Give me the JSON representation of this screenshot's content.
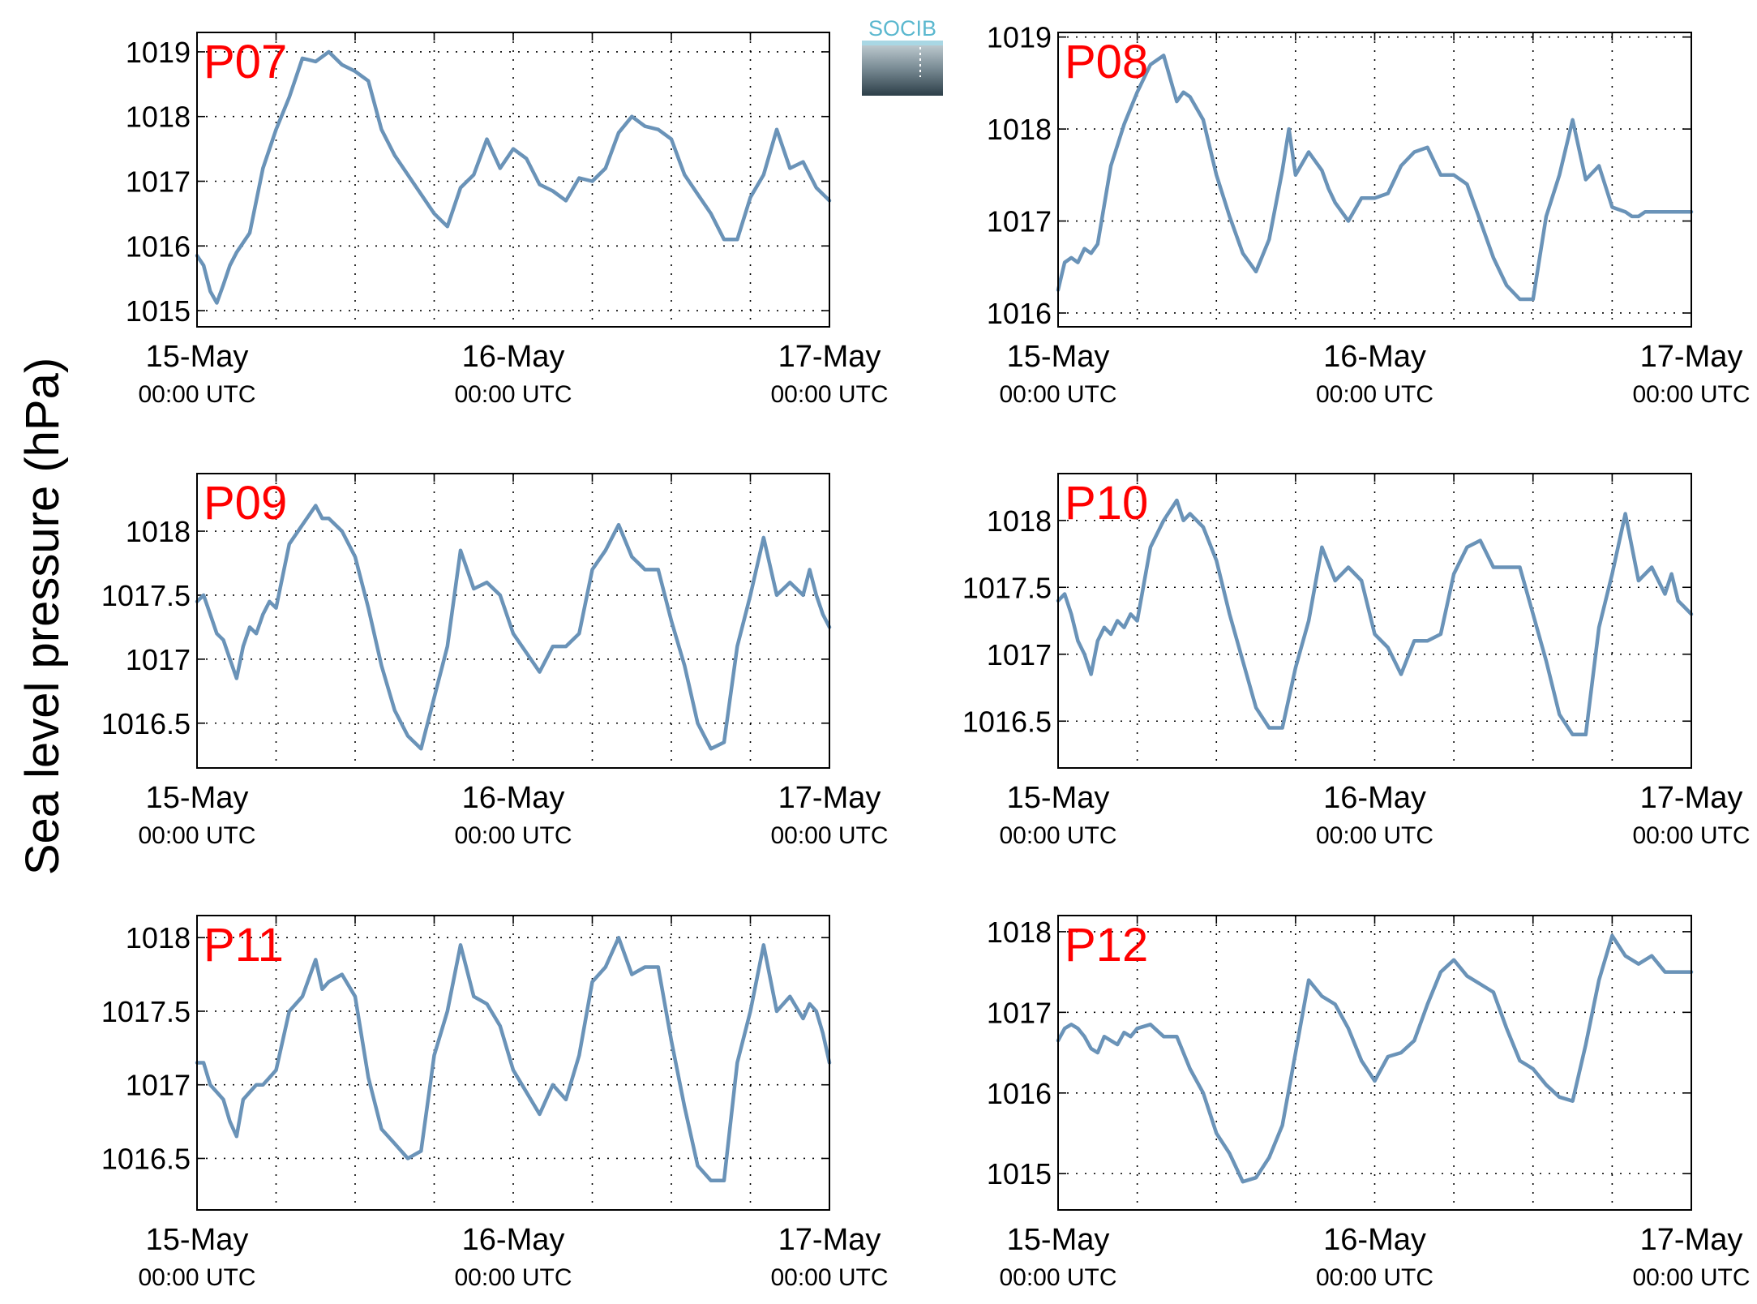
{
  "figure": {
    "ylabel": "Sea level pressure (hPa)",
    "logo_text": "SOCIB"
  },
  "colors": {
    "line": "#6a93b8",
    "station_label": "#ff0000",
    "axes": "#000000",
    "grid": "#000000"
  },
  "chart_data": [
    {
      "type": "line",
      "title": "P07",
      "ylim": [
        1014.75,
        1019.3
      ],
      "yticks": [
        1015,
        1016,
        1017,
        1018,
        1019
      ],
      "ytick_labels": [
        "1015",
        "1016",
        "1017",
        "1018",
        "1019"
      ],
      "xlim": [
        0,
        48
      ],
      "xticks": [
        0,
        24,
        48
      ],
      "xtick_labels": [
        "15-May",
        "16-May",
        "17-May"
      ],
      "xtick_sublabels": [
        "00:00 UTC",
        "00:00 UTC",
        "00:00 UTC"
      ],
      "grid": true,
      "x": [
        0,
        0.5,
        1,
        1.5,
        2,
        2.5,
        3,
        4,
        5,
        6,
        7,
        8,
        9,
        10,
        11,
        12,
        13,
        14,
        15,
        16,
        17,
        18,
        19,
        20,
        21,
        22,
        23,
        24,
        25,
        26,
        27,
        28,
        29,
        30,
        31,
        32,
        33,
        34,
        35,
        36,
        37,
        38,
        39,
        40,
        41,
        42,
        43,
        44,
        45,
        46,
        47,
        48
      ],
      "values": [
        1015.85,
        1015.7,
        1015.3,
        1015.12,
        1015.4,
        1015.7,
        1015.9,
        1016.2,
        1017.2,
        1017.8,
        1018.3,
        1018.9,
        1018.85,
        1019.0,
        1018.8,
        1018.7,
        1018.55,
        1017.8,
        1017.4,
        1017.1,
        1016.8,
        1016.5,
        1016.3,
        1016.9,
        1017.1,
        1017.65,
        1017.2,
        1017.5,
        1017.35,
        1016.95,
        1016.85,
        1016.7,
        1017.05,
        1017.0,
        1017.2,
        1017.75,
        1018.0,
        1017.85,
        1017.8,
        1017.65,
        1017.1,
        1016.8,
        1016.5,
        1016.1,
        1016.1,
        1016.75,
        1017.1,
        1017.8,
        1017.2,
        1017.3,
        1016.9,
        1016.7
      ]
    },
    {
      "type": "line",
      "title": "P08",
      "ylim": [
        1015.85,
        1019.05
      ],
      "yticks": [
        1016,
        1017,
        1018,
        1019
      ],
      "ytick_labels": [
        "1016",
        "1017",
        "1018",
        "1019"
      ],
      "xlim": [
        0,
        48
      ],
      "xticks": [
        0,
        24,
        48
      ],
      "xtick_labels": [
        "15-May",
        "16-May",
        "17-May"
      ],
      "xtick_sublabels": [
        "00:00 UTC",
        "00:00 UTC",
        "00:00 UTC"
      ],
      "grid": true,
      "x": [
        0,
        0.5,
        1,
        1.5,
        2,
        2.5,
        3,
        4,
        5,
        6,
        7,
        8,
        9,
        9.5,
        10,
        11,
        11.5,
        12,
        13,
        14,
        15,
        16,
        17,
        17.5,
        18,
        19,
        20,
        20.5,
        21,
        22,
        23,
        24,
        25,
        26,
        27,
        28,
        29,
        30,
        31,
        32,
        33,
        34,
        35,
        36,
        37,
        38,
        39,
        40,
        41,
        42,
        43,
        43.5,
        44,
        44.5,
        45,
        46,
        47,
        48
      ],
      "values": [
        1016.25,
        1016.55,
        1016.6,
        1016.55,
        1016.7,
        1016.65,
        1016.75,
        1017.6,
        1018.05,
        1018.4,
        1018.7,
        1018.8,
        1018.3,
        1018.4,
        1018.35,
        1018.1,
        1017.8,
        1017.5,
        1017.05,
        1016.65,
        1016.45,
        1016.8,
        1017.55,
        1018.0,
        1017.5,
        1017.75,
        1017.55,
        1017.35,
        1017.2,
        1017.0,
        1017.25,
        1017.25,
        1017.3,
        1017.6,
        1017.75,
        1017.8,
        1017.5,
        1017.5,
        1017.4,
        1017.0,
        1016.6,
        1016.3,
        1016.15,
        1016.15,
        1017.05,
        1017.5,
        1018.1,
        1017.45,
        1017.6,
        1017.15,
        1017.1,
        1017.05,
        1017.05,
        1017.1,
        1017.1,
        1017.1,
        1017.1,
        1017.1
      ]
    },
    {
      "type": "line",
      "title": "P09",
      "ylim": [
        1016.15,
        1018.45
      ],
      "yticks": [
        1016.5,
        1017,
        1017.5,
        1018
      ],
      "ytick_labels": [
        "1016.5",
        "1017",
        "1017.5",
        "1018"
      ],
      "xlim": [
        0,
        48
      ],
      "xticks": [
        0,
        24,
        48
      ],
      "xtick_labels": [
        "15-May",
        "16-May",
        "17-May"
      ],
      "xtick_sublabels": [
        "00:00 UTC",
        "00:00 UTC",
        "00:00 UTC"
      ],
      "grid": true,
      "x": [
        0,
        0.5,
        1,
        1.5,
        2,
        2.5,
        3,
        3.5,
        4,
        4.5,
        5,
        5.5,
        6,
        7,
        8,
        9,
        9.5,
        10,
        11,
        12,
        13,
        14,
        15,
        16,
        17,
        18,
        19,
        20,
        21,
        22,
        23,
        24,
        25,
        26,
        27,
        28,
        29,
        30,
        31,
        32,
        33,
        34,
        35,
        36,
        37,
        38,
        39,
        40,
        41,
        42,
        43,
        44,
        45,
        46,
        46.5,
        47,
        47.5,
        48
      ],
      "values": [
        1017.45,
        1017.5,
        1017.35,
        1017.2,
        1017.15,
        1017.0,
        1016.85,
        1017.1,
        1017.25,
        1017.2,
        1017.35,
        1017.45,
        1017.4,
        1017.9,
        1018.05,
        1018.2,
        1018.1,
        1018.1,
        1018.0,
        1017.8,
        1017.4,
        1016.95,
        1016.6,
        1016.4,
        1016.3,
        1016.7,
        1017.1,
        1017.85,
        1017.55,
        1017.6,
        1017.5,
        1017.2,
        1017.05,
        1016.9,
        1017.1,
        1017.1,
        1017.2,
        1017.7,
        1017.85,
        1018.05,
        1017.8,
        1017.7,
        1017.7,
        1017.3,
        1016.95,
        1016.5,
        1016.3,
        1016.35,
        1017.1,
        1017.5,
        1017.95,
        1017.5,
        1017.6,
        1017.5,
        1017.7,
        1017.5,
        1017.35,
        1017.25
      ]
    },
    {
      "type": "line",
      "title": "P10",
      "ylim": [
        1016.15,
        1018.35
      ],
      "yticks": [
        1016.5,
        1017,
        1017.5,
        1018
      ],
      "ytick_labels": [
        "1016.5",
        "1017",
        "1017.5",
        "1018"
      ],
      "xlim": [
        0,
        48
      ],
      "xticks": [
        0,
        24,
        48
      ],
      "xtick_labels": [
        "15-May",
        "16-May",
        "17-May"
      ],
      "xtick_sublabels": [
        "00:00 UTC",
        "00:00 UTC",
        "00:00 UTC"
      ],
      "grid": true,
      "x": [
        0,
        0.5,
        1,
        1.5,
        2,
        2.5,
        3,
        3.5,
        4,
        4.5,
        5,
        5.5,
        6,
        7,
        8,
        9,
        9.5,
        10,
        11,
        12,
        13,
        14,
        15,
        16,
        17,
        18,
        19,
        20,
        21,
        22,
        23,
        24,
        25,
        26,
        27,
        28,
        29,
        30,
        31,
        32,
        33,
        34,
        35,
        36,
        37,
        38,
        39,
        40,
        41,
        42,
        43,
        44,
        45,
        46,
        46.5,
        47,
        47.5,
        48
      ],
      "values": [
        1017.4,
        1017.45,
        1017.3,
        1017.1,
        1017.0,
        1016.85,
        1017.1,
        1017.2,
        1017.15,
        1017.25,
        1017.2,
        1017.3,
        1017.25,
        1017.8,
        1018.0,
        1018.15,
        1018.0,
        1018.05,
        1017.95,
        1017.7,
        1017.3,
        1016.95,
        1016.6,
        1016.45,
        1016.45,
        1016.9,
        1017.25,
        1017.8,
        1017.55,
        1017.65,
        1017.55,
        1017.15,
        1017.05,
        1016.85,
        1017.1,
        1017.1,
        1017.15,
        1017.6,
        1017.8,
        1017.85,
        1017.65,
        1017.65,
        1017.65,
        1017.3,
        1016.95,
        1016.55,
        1016.4,
        1016.4,
        1017.2,
        1017.6,
        1018.05,
        1017.55,
        1017.65,
        1017.45,
        1017.6,
        1017.4,
        1017.35,
        1017.3
      ]
    },
    {
      "type": "line",
      "title": "P11",
      "ylim": [
        1016.15,
        1018.15
      ],
      "yticks": [
        1016.5,
        1017,
        1017.5,
        1018
      ],
      "ytick_labels": [
        "1016.5",
        "1017",
        "1017.5",
        "1018"
      ],
      "xlim": [
        0,
        48
      ],
      "xticks": [
        0,
        24,
        48
      ],
      "xtick_labels": [
        "15-May",
        "16-May",
        "17-May"
      ],
      "xtick_sublabels": [
        "00:00 UTC",
        "00:00 UTC",
        "00:00 UTC"
      ],
      "grid": true,
      "x": [
        0,
        0.5,
        1,
        1.5,
        2,
        2.5,
        3,
        3.5,
        4,
        4.5,
        5,
        5.5,
        6,
        7,
        8,
        9,
        9.5,
        10,
        11,
        12,
        13,
        14,
        15,
        16,
        17,
        18,
        19,
        20,
        21,
        22,
        23,
        24,
        25,
        26,
        27,
        28,
        29,
        30,
        31,
        32,
        33,
        34,
        35,
        36,
        37,
        38,
        39,
        40,
        41,
        42,
        43,
        44,
        45,
        46,
        46.5,
        47,
        47.5,
        48
      ],
      "values": [
        1017.15,
        1017.15,
        1017.0,
        1016.95,
        1016.9,
        1016.75,
        1016.65,
        1016.9,
        1016.95,
        1017.0,
        1017.0,
        1017.05,
        1017.1,
        1017.5,
        1017.6,
        1017.85,
        1017.65,
        1017.7,
        1017.75,
        1017.6,
        1017.05,
        1016.7,
        1016.6,
        1016.5,
        1016.55,
        1017.2,
        1017.5,
        1017.95,
        1017.6,
        1017.55,
        1017.4,
        1017.1,
        1016.95,
        1016.8,
        1017.0,
        1016.9,
        1017.2,
        1017.7,
        1017.8,
        1018.0,
        1017.75,
        1017.8,
        1017.8,
        1017.3,
        1016.85,
        1016.45,
        1016.35,
        1016.35,
        1017.15,
        1017.5,
        1017.95,
        1017.5,
        1017.6,
        1017.45,
        1017.55,
        1017.5,
        1017.35,
        1017.15
      ]
    },
    {
      "type": "line",
      "title": "P12",
      "ylim": [
        1014.55,
        1018.2
      ],
      "yticks": [
        1015,
        1016,
        1017,
        1018
      ],
      "ytick_labels": [
        "1015",
        "1016",
        "1017",
        "1018"
      ],
      "xlim": [
        0,
        48
      ],
      "xticks": [
        0,
        24,
        48
      ],
      "xtick_labels": [
        "15-May",
        "16-May",
        "17-May"
      ],
      "xtick_sublabels": [
        "00:00 UTC",
        "00:00 UTC",
        "00:00 UTC"
      ],
      "grid": true,
      "x": [
        0,
        0.5,
        1,
        1.5,
        2,
        2.5,
        3,
        3.5,
        4,
        4.5,
        5,
        5.5,
        6,
        7,
        8,
        9,
        10,
        11,
        12,
        13,
        14,
        15,
        16,
        17,
        18,
        19,
        20,
        21,
        22,
        23,
        24,
        25,
        26,
        27,
        28,
        29,
        30,
        31,
        32,
        33,
        34,
        35,
        36,
        37,
        38,
        39,
        40,
        41,
        42,
        43,
        44,
        45,
        46,
        46.5,
        47,
        47.5,
        48
      ],
      "values": [
        1016.65,
        1016.8,
        1016.85,
        1016.8,
        1016.7,
        1016.55,
        1016.5,
        1016.7,
        1016.65,
        1016.6,
        1016.75,
        1016.7,
        1016.8,
        1016.85,
        1016.7,
        1016.7,
        1016.3,
        1016.0,
        1015.5,
        1015.25,
        1014.9,
        1014.95,
        1015.2,
        1015.6,
        1016.5,
        1017.4,
        1017.2,
        1017.1,
        1016.8,
        1016.4,
        1016.15,
        1016.45,
        1016.5,
        1016.65,
        1017.1,
        1017.5,
        1017.65,
        1017.45,
        1017.35,
        1017.25,
        1016.8,
        1016.4,
        1016.3,
        1016.1,
        1015.95,
        1015.9,
        1016.6,
        1017.4,
        1017.95,
        1017.7,
        1017.6,
        1017.7,
        1017.5,
        1017.5,
        1017.5,
        1017.5,
        1017.5
      ]
    }
  ]
}
